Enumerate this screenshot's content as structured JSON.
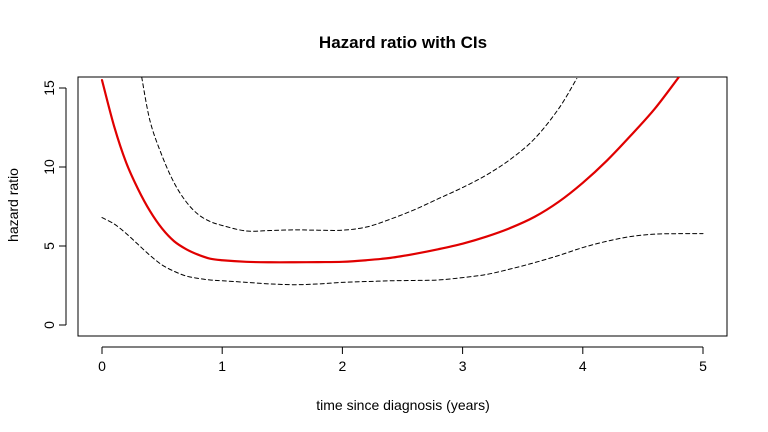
{
  "chart_data": {
    "type": "line",
    "title": "Hazard ratio with CIs",
    "xlabel": "time since diagnosis (years)",
    "ylabel": "hazard ratio",
    "xlim": [
      0,
      5
    ],
    "ylim": [
      0,
      15
    ],
    "x_ticks": [
      0,
      1,
      2,
      3,
      4,
      5
    ],
    "y_ticks": [
      0,
      5,
      10,
      15
    ],
    "grid": false,
    "legend": "none",
    "series": [
      {
        "role": "estimate",
        "color": "#e00000",
        "style": "solid",
        "x": [
          0,
          0.1,
          0.2,
          0.3,
          0.4,
          0.5,
          0.6,
          0.7,
          0.8,
          0.9,
          1.0,
          1.2,
          1.4,
          1.6,
          1.8,
          2.0,
          2.2,
          2.4,
          2.6,
          2.8,
          3.0,
          3.2,
          3.4,
          3.6,
          3.8,
          4.0,
          4.2,
          4.4,
          4.6,
          4.8
        ],
        "y": [
          15.5,
          12.6,
          10.3,
          8.6,
          7.2,
          6.1,
          5.3,
          4.8,
          4.45,
          4.2,
          4.1,
          4.0,
          3.97,
          3.97,
          3.98,
          4.0,
          4.1,
          4.25,
          4.5,
          4.8,
          5.15,
          5.6,
          6.15,
          6.85,
          7.8,
          9.0,
          10.4,
          12.0,
          13.7,
          15.7
        ]
      },
      {
        "role": "upper CI",
        "color": "#000000",
        "style": "dashed",
        "x": [
          0.33,
          0.4,
          0.5,
          0.6,
          0.7,
          0.8,
          0.9,
          1.0,
          1.2,
          1.4,
          1.6,
          1.8,
          2.0,
          2.2,
          2.4,
          2.6,
          2.8,
          3.0,
          3.2,
          3.4,
          3.6,
          3.8,
          3.95
        ],
        "y": [
          15.7,
          12.9,
          10.7,
          9.0,
          7.8,
          7.0,
          6.55,
          6.3,
          5.95,
          5.98,
          6.02,
          6.0,
          6.0,
          6.2,
          6.7,
          7.3,
          8.0,
          8.7,
          9.5,
          10.5,
          11.8,
          13.7,
          15.6
        ]
      },
      {
        "role": "lower CI",
        "color": "#000000",
        "style": "dashed",
        "x": [
          0,
          0.1,
          0.2,
          0.3,
          0.4,
          0.5,
          0.6,
          0.7,
          0.8,
          0.9,
          1.0,
          1.2,
          1.4,
          1.6,
          1.8,
          2.0,
          2.2,
          2.4,
          2.6,
          2.8,
          3.0,
          3.2,
          3.4,
          3.6,
          3.8,
          4.0,
          4.2,
          4.4,
          4.6,
          4.8,
          5.0
        ],
        "y": [
          6.8,
          6.4,
          5.8,
          5.1,
          4.4,
          3.8,
          3.4,
          3.1,
          2.95,
          2.85,
          2.8,
          2.7,
          2.6,
          2.55,
          2.6,
          2.7,
          2.75,
          2.8,
          2.82,
          2.85,
          3.0,
          3.2,
          3.55,
          3.95,
          4.4,
          4.9,
          5.3,
          5.6,
          5.75,
          5.78,
          5.78
        ]
      }
    ]
  }
}
